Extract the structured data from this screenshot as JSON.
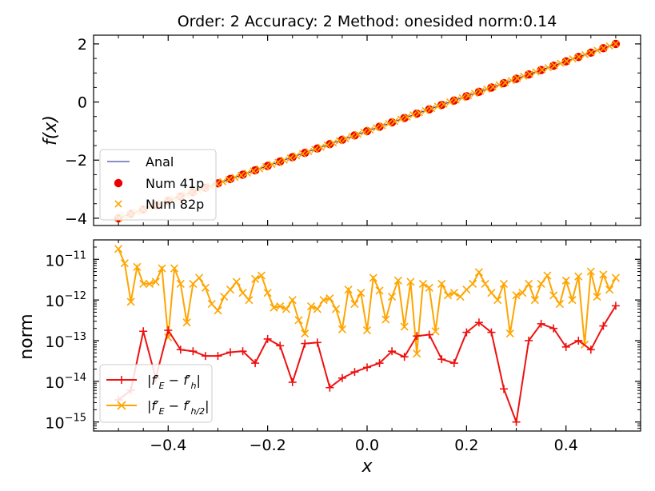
{
  "title": "Order: 2 Accuracy: 2 Method: onesided norm:0.14",
  "colors": {
    "anal": "#1a1a8c",
    "num41": "#ee0000",
    "num82": "#ffa500",
    "err1": "#ee1111",
    "err2": "#ffa500"
  },
  "chart_data": [
    {
      "type": "scatter",
      "panel": "top",
      "ylabel": "f(x)",
      "xlim": [
        -0.55,
        0.55
      ],
      "ylim": [
        -4.25,
        2.3
      ],
      "yticks": [
        2,
        0,
        -2,
        -4
      ],
      "ytick_labels": [
        "2",
        "0",
        "−2",
        "−4"
      ],
      "legend_location": "lower-left",
      "series": [
        {
          "name": "Anal",
          "style": "line",
          "x_range": [
            -0.5,
            0.5
          ],
          "y_range": [
            -4.0,
            2.0
          ]
        },
        {
          "name": "Num 41p",
          "style": "circle",
          "n": 41,
          "x_range": [
            -0.5,
            0.5
          ],
          "y_range": [
            -4.0,
            2.0
          ]
        },
        {
          "name": "Num 82p",
          "style": "x",
          "n": 82,
          "x_range": [
            -0.5,
            0.5
          ],
          "y_range": [
            -4.0,
            2.0
          ]
        }
      ]
    },
    {
      "type": "line",
      "panel": "bottom",
      "yscale": "log",
      "xlabel": "x",
      "ylabel": "norm",
      "xlim": [
        -0.55,
        0.55
      ],
      "ylim": [
        6e-16,
        3e-11
      ],
      "xticks": [
        -0.4,
        -0.2,
        0.0,
        0.2,
        0.4
      ],
      "xtick_labels": [
        "−0.4",
        "−0.2",
        "0.0",
        "0.2",
        "0.4"
      ],
      "yticks": [
        -11,
        -12,
        -13,
        -14,
        -15
      ],
      "legend_location": "lower-left",
      "series": [
        {
          "name": "|f'_E - f'_h|",
          "marker": "+",
          "x": [
            -0.5,
            -0.475,
            -0.45,
            -0.425,
            -0.4,
            -0.375,
            -0.35,
            -0.325,
            -0.3,
            -0.275,
            -0.25,
            -0.225,
            -0.2,
            -0.175,
            -0.15,
            -0.125,
            -0.1,
            -0.075,
            -0.05,
            -0.025,
            0.0,
            0.025,
            0.05,
            0.075,
            0.1,
            0.125,
            0.15,
            0.175,
            0.2,
            0.225,
            0.25,
            0.275,
            0.3,
            0.325,
            0.35,
            0.375,
            0.4,
            0.425,
            0.45,
            0.475,
            0.5
          ],
          "y": [
            3.5e-15,
            6e-15,
            1.7e-13,
            1.2e-14,
            1.8e-13,
            6e-14,
            5.5e-14,
            4.2e-14,
            4.2e-14,
            5.2e-14,
            5.5e-14,
            2.8e-14,
            1.1e-13,
            7.5e-14,
            9.5e-15,
            8.5e-14,
            9e-14,
            7e-15,
            1.2e-14,
            1.7e-14,
            2.2e-14,
            2.8e-14,
            5.5e-14,
            4e-14,
            1.3e-13,
            1.4e-13,
            3.5e-14,
            2.8e-14,
            1.6e-13,
            2.8e-13,
            1.6e-13,
            6.5e-15,
            1e-15,
            1e-13,
            2.6e-13,
            2e-13,
            7e-14,
            1e-13,
            6e-14,
            2.3e-13,
            7.2e-13
          ]
        },
        {
          "name": "|f'_E - f'_{h/2}|",
          "marker": "x",
          "x": [
            -0.5,
            -0.4875,
            -0.475,
            -0.4625,
            -0.45,
            -0.4375,
            -0.425,
            -0.4125,
            -0.4,
            -0.3875,
            -0.375,
            -0.3625,
            -0.35,
            -0.3375,
            -0.325,
            -0.3125,
            -0.3,
            -0.2875,
            -0.275,
            -0.2625,
            -0.25,
            -0.2375,
            -0.225,
            -0.2125,
            -0.2,
            -0.1875,
            -0.175,
            -0.1625,
            -0.15,
            -0.1375,
            -0.125,
            -0.1125,
            -0.1,
            -0.0875,
            -0.075,
            -0.0625,
            -0.05,
            -0.0375,
            -0.025,
            -0.0125,
            0.0,
            0.0125,
            0.025,
            0.0375,
            0.05,
            0.0625,
            0.075,
            0.0875,
            0.1,
            0.1125,
            0.125,
            0.1375,
            0.15,
            0.1625,
            0.175,
            0.1875,
            0.2,
            0.2125,
            0.225,
            0.2375,
            0.25,
            0.2625,
            0.275,
            0.2875,
            0.3,
            0.3125,
            0.325,
            0.3375,
            0.35,
            0.3625,
            0.375,
            0.3875,
            0.4,
            0.4125,
            0.425,
            0.4375,
            0.45,
            0.4625,
            0.475,
            0.4875,
            0.5
          ],
          "y": [
            1.8e-11,
            8e-12,
            9e-13,
            6.5e-12,
            2.5e-12,
            2.5e-12,
            2.8e-12,
            6e-12,
            1.2e-13,
            6e-12,
            2.5e-12,
            2.8e-13,
            2.5e-12,
            3.5e-12,
            2e-12,
            8e-13,
            5.5e-13,
            1.2e-12,
            1.8e-12,
            2.8e-12,
            1.5e-12,
            1e-12,
            3.3e-12,
            4e-12,
            1.5e-12,
            6.5e-13,
            7e-13,
            6e-13,
            1e-12,
            3.2e-13,
            1.5e-13,
            7e-13,
            6e-13,
            1e-12,
            1.1e-12,
            6e-13,
            1.9e-13,
            1.8e-12,
            8e-13,
            1.5e-12,
            1.8e-13,
            3.5e-12,
            1.7e-12,
            3.3e-13,
            1.2e-12,
            3e-12,
            2.2e-13,
            2.8e-12,
            4.8e-14,
            2.5e-12,
            2e-12,
            1.7e-13,
            2.5e-12,
            1.3e-12,
            1.5e-12,
            1.2e-12,
            1.8e-12,
            2.5e-12,
            4.8e-12,
            2.5e-12,
            1.5e-12,
            1e-12,
            2.5e-12,
            1.5e-13,
            1.3e-12,
            1.5e-12,
            2.5e-12,
            1e-12,
            2.5e-12,
            4e-12,
            1.3e-12,
            8e-13,
            3e-12,
            1e-12,
            3.8e-12,
            8e-14,
            5e-12,
            1.2e-12,
            4.2e-12,
            1.8e-12,
            3.5e-12
          ]
        }
      ]
    }
  ]
}
